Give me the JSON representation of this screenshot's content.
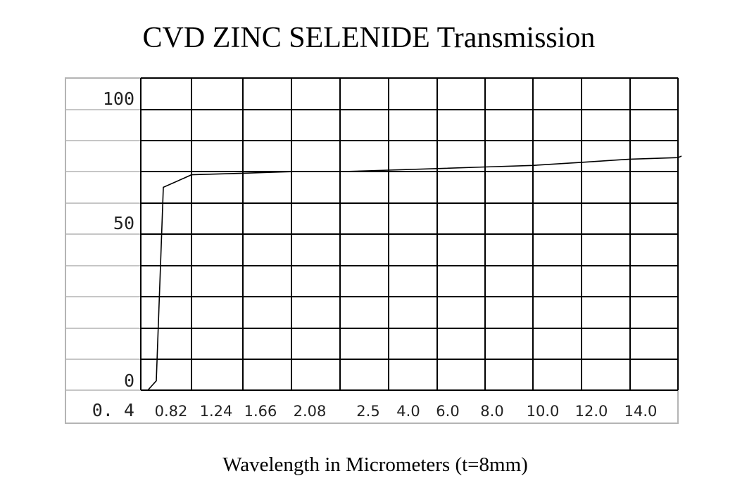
{
  "chart_data": {
    "type": "line",
    "title": "CVD ZINC SELENIDE Transmission",
    "xlabel": "Wavelength in Micrometers (t=8mm)",
    "ylabel": "",
    "y_tick_labels": [
      "100",
      "50",
      "0"
    ],
    "x_start_label": "0. 4",
    "x_tick_labels": [
      "0.82",
      "1.24",
      "1.66",
      "2.08",
      "2.5",
      "4.0",
      "6.0",
      "8.0",
      "10.0",
      "12.0",
      "14.0"
    ],
    "x_axis_note": "non-uniform categorical wavelength scale",
    "ylim": [
      0,
      100
    ],
    "grid": true,
    "series": [
      {
        "points": [
          [
            0.4,
            0
          ],
          [
            0.53,
            3
          ],
          [
            0.58,
            40
          ],
          [
            0.6,
            65
          ],
          [
            0.7,
            68
          ],
          [
            0.82,
            69
          ],
          [
            1.24,
            69.5
          ],
          [
            1.66,
            70
          ],
          [
            2.08,
            70
          ],
          [
            2.5,
            70.5
          ],
          [
            4.0,
            71
          ],
          [
            6.0,
            71.5
          ],
          [
            8.0,
            72
          ],
          [
            10.0,
            73
          ],
          [
            12.0,
            74
          ],
          [
            14.0,
            74.5
          ],
          [
            15.0,
            75
          ]
        ]
      }
    ]
  }
}
